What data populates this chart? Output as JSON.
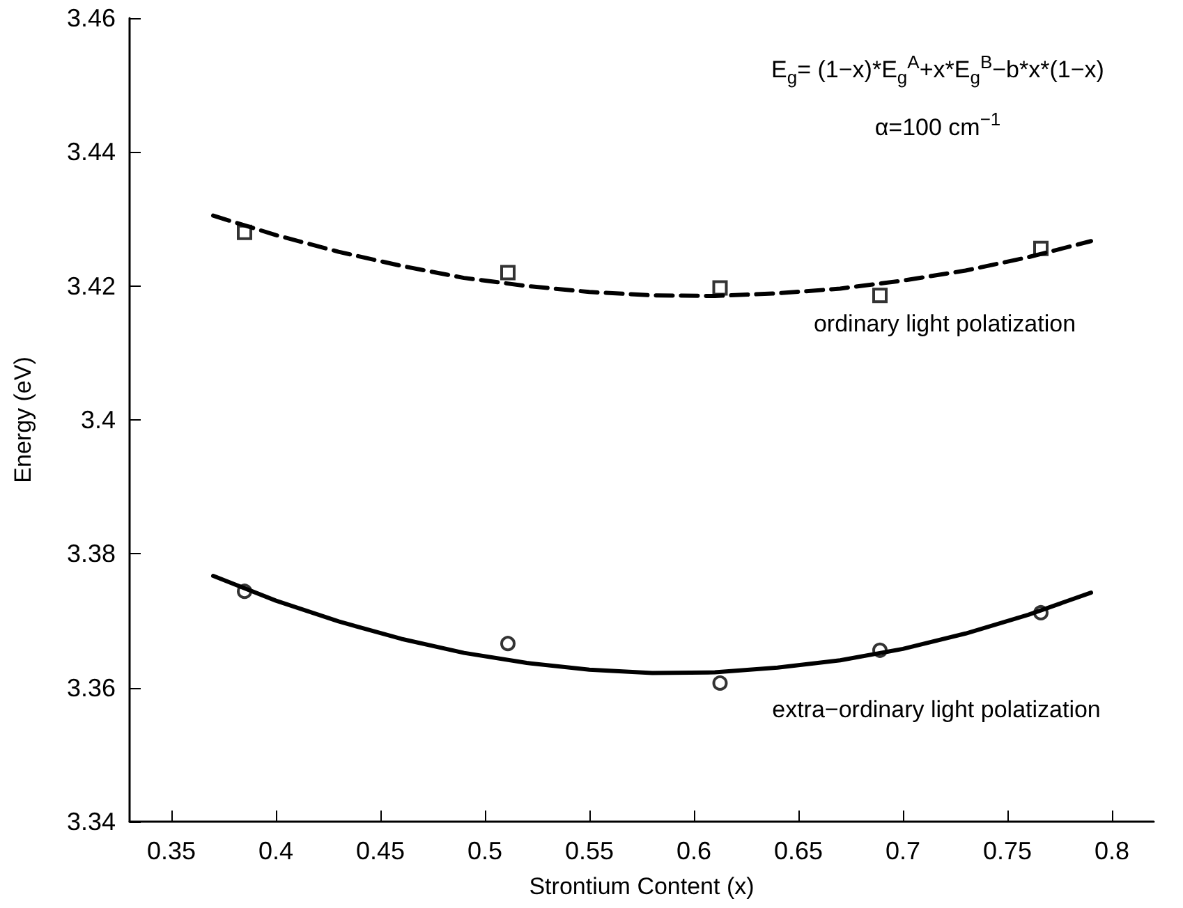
{
  "chart_data": {
    "type": "scatter",
    "xlabel": "Strontium Content (x)",
    "ylabel": "Energy (eV)",
    "xlim": [
      0.33,
      0.82
    ],
    "xticks": [
      0.35,
      0.4,
      0.45,
      0.5,
      0.55,
      0.6,
      0.65,
      0.7,
      0.75,
      0.8
    ],
    "ylim": [
      3.34,
      3.46
    ],
    "yticks": [
      3.34,
      3.36,
      3.38,
      3.4,
      3.42,
      3.44,
      3.46
    ],
    "grid": false,
    "series": [
      {
        "marker": "square",
        "color": "#000000",
        "x": [
          0.385,
          0.511,
          0.6125,
          0.689,
          0.766
        ],
        "values": [
          3.428,
          3.422,
          3.4197,
          3.4186,
          3.4256
        ]
      },
      {
        "type": "line",
        "marker": "none",
        "line_style": "dashed",
        "color": "#000000",
        "x": [
          0.37,
          0.4,
          0.43,
          0.46,
          0.49,
          0.52,
          0.55,
          0.58,
          0.61,
          0.64,
          0.67,
          0.7,
          0.73,
          0.76,
          0.79
        ],
        "values": [
          3.4305,
          3.4276,
          3.4251,
          3.423,
          3.4212,
          3.42,
          3.4191,
          3.4186,
          3.4185,
          3.4189,
          3.4196,
          3.4208,
          3.4223,
          3.4243,
          3.4267
        ]
      },
      {
        "marker": "circle",
        "color": "#000000",
        "x": [
          0.385,
          0.511,
          0.6125,
          0.689,
          0.766
        ],
        "values": [
          3.3744,
          3.3666,
          3.3607,
          3.3656,
          3.3712
        ]
      },
      {
        "type": "line",
        "marker": "none",
        "line_style": "solid",
        "color": "#000000",
        "x": [
          0.37,
          0.4,
          0.43,
          0.46,
          0.49,
          0.52,
          0.55,
          0.58,
          0.61,
          0.64,
          0.67,
          0.7,
          0.73,
          0.76,
          0.79
        ],
        "values": [
          3.3767,
          3.373,
          3.3699,
          3.3673,
          3.3652,
          3.3637,
          3.3627,
          3.3622,
          3.3623,
          3.363,
          3.3641,
          3.3658,
          3.3681,
          3.3709,
          3.3742
        ]
      }
    ],
    "annotations": [
      "E$_{g}$= (1−x)*E$_{g}$$^{A}$+x*E$_{g}$$^{B}$−b*x*(1−x)",
      "α=100 cm$^{−1}$",
      "ordinary light polatization",
      "extra−ordinary light polatization"
    ]
  }
}
